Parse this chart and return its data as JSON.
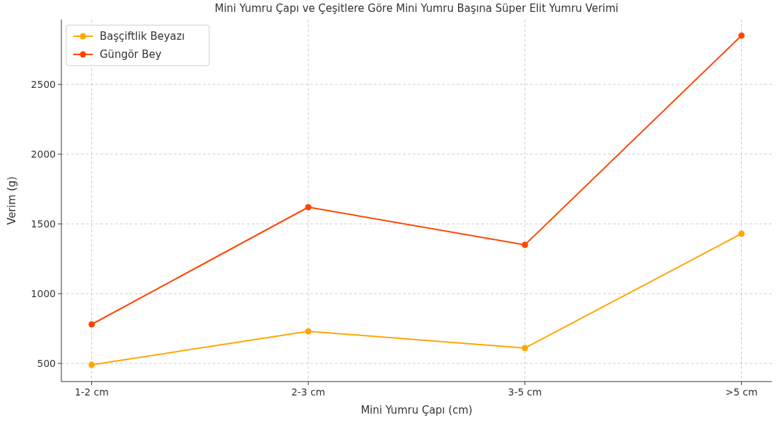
{
  "chart_data": {
    "type": "line",
    "title": "Mini Yumru Çapı ve Çeşitlere Göre Mini Yumru Başına Süper Elit Yumru Verimi",
    "xlabel": "Mini Yumru Çapı (cm)",
    "ylabel": "Verim (g)",
    "categories": [
      "1-2 cm",
      "2-3 cm",
      "3-5 cm",
      ">5 cm"
    ],
    "series": [
      {
        "name": "Başçiftlik Beyazı",
        "color": "#ffa500",
        "values": [
          490,
          730,
          610,
          1430
        ]
      },
      {
        "name": "Güngör Bey",
        "color": "#ff4500",
        "values": [
          780,
          1620,
          1350,
          2850
        ]
      }
    ],
    "ylim": [
      370,
      2965
    ],
    "yticks": [
      500,
      1000,
      1500,
      2000,
      2500
    ],
    "grid": true,
    "legend": "top left",
    "marker": "circle",
    "line_style": "solid"
  }
}
